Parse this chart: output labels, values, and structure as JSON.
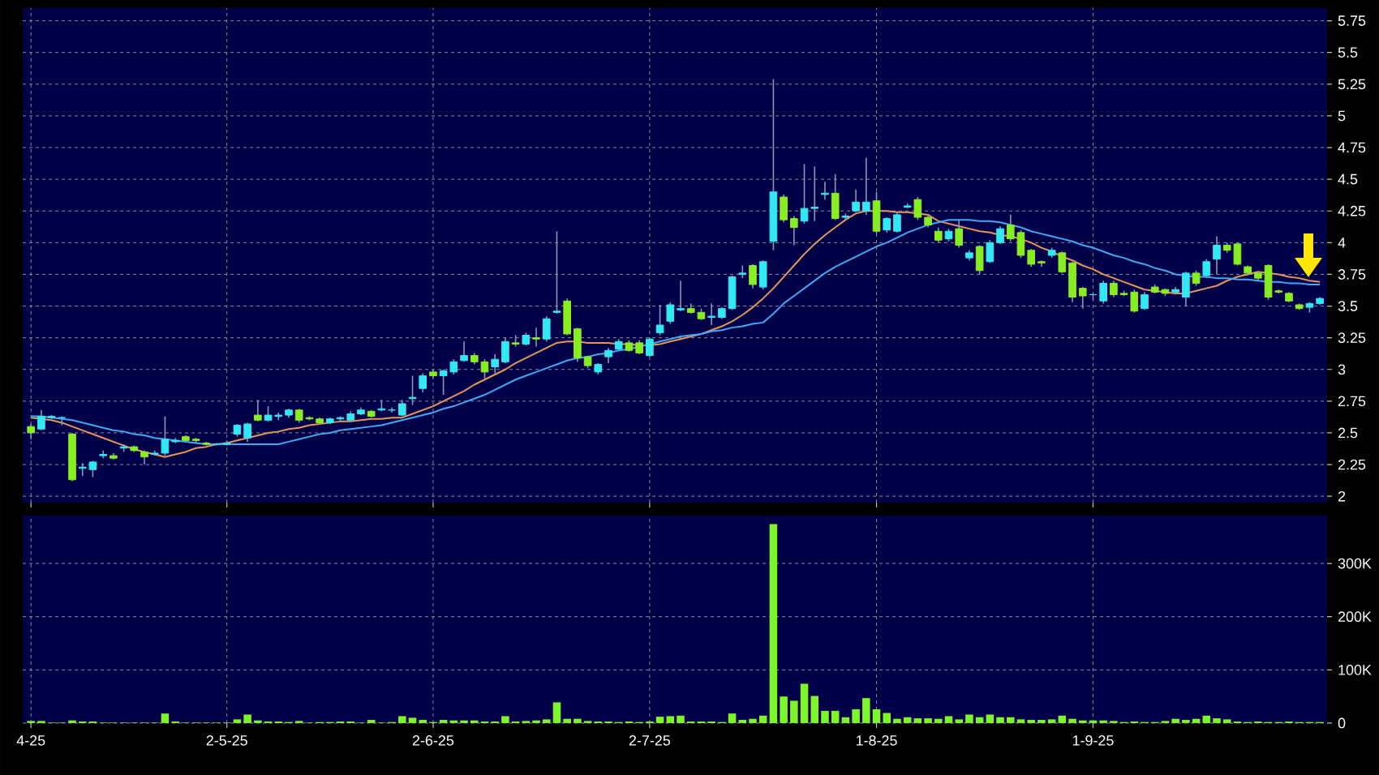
{
  "chart_data": [
    {
      "type": "candlestick",
      "grid": true,
      "tick_labels": "y",
      "colors": [
        "#88ee22",
        "#33e8f2",
        "#33e8f2",
        "#33e8f2",
        "#88ee22",
        "#33e8f2",
        "#33e8f2",
        "#33e8f2",
        "#88ee22",
        "#33e8f2",
        "#88ee22",
        "#88ee22",
        "#33e8f2",
        "#33e8f2",
        "#33e8f2",
        "#88ee22",
        "#88ee22",
        "#88ee22",
        "#33e8f2",
        "#33e8f2",
        "#33e8f2",
        "#33e8f2",
        "#88ee22",
        "#33e8f2",
        "#33e8f2",
        "#33e8f2",
        "#88ee22",
        "#88ee22",
        "#88ee22",
        "#33e8f2",
        "#33e8f2",
        "#33e8f2",
        "#33e8f2",
        "#88ee22",
        "#33e8f2",
        "#33e8f2",
        "#33e8f2",
        "#33e8f2",
        "#33e8f2",
        "#88ee22",
        "#33e8f2",
        "#33e8f2",
        "#33e8f2",
        "#88ee22",
        "#88ee22",
        "#33e8f2",
        "#33e8f2",
        "#88ee22",
        "#33e8f2",
        "#88ee22",
        "#33e8f2",
        "#33e8f2",
        "#88ee22",
        "#88ee22",
        "#88ee22",
        "#33e8f2",
        "#33e8f2",
        "#33e8f2",
        "#88ee22",
        "#88ee22",
        "#33e8f2",
        "#33e8f2",
        "#33e8f2",
        "#33e8f2",
        "#88ee22",
        "#88ee22",
        "#33e8f2",
        "#33e8f2",
        "#33e8f2",
        "#33e8f2",
        "#88ee22",
        "#33e8f2",
        "#33e8f2",
        "#88ee22",
        "#88ee22",
        "#33e8f2",
        "#33e8f2",
        "#33e8f2",
        "#88ee22",
        "#33e8f2",
        "#33e8f2",
        "#33e8f2",
        "#88ee22",
        "#33e8f2",
        "#33e8f2",
        "#33e8f2",
        "#88ee22",
        "#88ee22",
        "#88ee22",
        "#33e8f2",
        "#88ee22",
        "#33e8f2",
        "#88ee22",
        "#33e8f2",
        "#33e8f2",
        "#88ee22",
        "#88ee22",
        "#88ee22",
        "#88ee22",
        "#33e8f2",
        "#88ee22",
        "#88ee22",
        "#88ee22",
        "#33e8f2",
        "#33e8f2",
        "#88ee22",
        "#88ee22",
        "#88ee22",
        "#33e8f2",
        "#88ee22",
        "#88ee22",
        "#33e8f2",
        "#33e8f2",
        "#88ee22",
        "#33e8f2",
        "#33e8f2",
        "#88ee22",
        "#88ee22",
        "#88ee22",
        "#88ee22",
        "#88ee22",
        "#88ee22",
        "#88ee22",
        "#88ee22",
        "#33e8f2",
        "#33e8f2"
      ],
      "categories": [
        null,
        null,
        null,
        null,
        null,
        null,
        null,
        null,
        null,
        null,
        null,
        null,
        null,
        null,
        null,
        null,
        null,
        null,
        null,
        null,
        null,
        null,
        null,
        null,
        null,
        null,
        null,
        null,
        null,
        null,
        null,
        null,
        null,
        null,
        null,
        null,
        null,
        null,
        null,
        null,
        null,
        null,
        null,
        null,
        null,
        null,
        null,
        null,
        null,
        null,
        null,
        null,
        null,
        null,
        null,
        null,
        null,
        null,
        null,
        null,
        null,
        null,
        null,
        null,
        null,
        null,
        null,
        null,
        null,
        null,
        null,
        null,
        null,
        null,
        null,
        null,
        null,
        null,
        null,
        null,
        null,
        null,
        null,
        null,
        null,
        null,
        null,
        null,
        null,
        null,
        null,
        null,
        null,
        null,
        null,
        null,
        null,
        null,
        null,
        null,
        null,
        null,
        null,
        null,
        null,
        null,
        null,
        null,
        null,
        null,
        null,
        null,
        null,
        null,
        null,
        null,
        null,
        null,
        null,
        null,
        null,
        null,
        null,
        null,
        null,
        null
      ],
      "ylim": [
        1.95,
        5.85
      ],
      "yticks": [
        2,
        2.25,
        2.5,
        2.75,
        3,
        3.25,
        3.5,
        3.75,
        4,
        4.25,
        4.5,
        4.75,
        5,
        5.25,
        5.5,
        5.75
      ],
      "ohlc": [
        [
          2.55,
          2.57,
          2.45,
          2.5
        ],
        [
          2.53,
          2.68,
          2.52,
          2.63
        ],
        [
          2.62,
          2.64,
          2.61,
          2.63
        ],
        [
          2.62,
          2.63,
          2.56,
          2.62
        ],
        [
          2.49,
          2.5,
          2.12,
          2.13
        ],
        [
          2.22,
          2.26,
          2.16,
          2.23
        ],
        [
          2.21,
          2.28,
          2.15,
          2.27
        ],
        [
          2.32,
          2.36,
          2.3,
          2.33
        ],
        [
          2.32,
          2.34,
          2.29,
          2.3
        ],
        [
          2.38,
          2.41,
          2.35,
          2.39
        ],
        [
          2.39,
          2.4,
          2.35,
          2.36
        ],
        [
          2.35,
          2.36,
          2.25,
          2.31
        ],
        [
          2.33,
          2.36,
          2.32,
          2.34
        ],
        [
          2.34,
          2.63,
          2.32,
          2.45
        ],
        [
          2.43,
          2.46,
          2.42,
          2.44
        ],
        [
          2.47,
          2.48,
          2.43,
          2.44
        ],
        [
          2.45,
          2.46,
          2.42,
          2.44
        ],
        [
          2.42,
          2.43,
          2.4,
          2.41
        ],
        [
          2.41,
          2.42,
          2.4,
          2.41
        ],
        [
          2.41,
          2.44,
          2.4,
          2.42
        ],
        [
          2.49,
          2.57,
          2.47,
          2.56
        ],
        [
          2.46,
          2.58,
          2.43,
          2.57
        ],
        [
          2.64,
          2.76,
          2.59,
          2.6
        ],
        [
          2.6,
          2.71,
          2.59,
          2.64
        ],
        [
          2.63,
          2.66,
          2.6,
          2.64
        ],
        [
          2.64,
          2.69,
          2.62,
          2.68
        ],
        [
          2.68,
          2.69,
          2.58,
          2.6
        ],
        [
          2.62,
          2.63,
          2.6,
          2.61
        ],
        [
          2.61,
          2.62,
          2.57,
          2.58
        ],
        [
          2.58,
          2.62,
          2.57,
          2.61
        ],
        [
          2.61,
          2.63,
          2.59,
          2.62
        ],
        [
          2.6,
          2.67,
          2.59,
          2.65
        ],
        [
          2.65,
          2.7,
          2.64,
          2.68
        ],
        [
          2.67,
          2.68,
          2.62,
          2.63
        ],
        [
          2.68,
          2.76,
          2.67,
          2.69
        ],
        [
          2.68,
          2.7,
          2.66,
          2.68
        ],
        [
          2.64,
          2.76,
          2.63,
          2.73
        ],
        [
          2.77,
          2.95,
          2.72,
          2.78
        ],
        [
          2.85,
          2.97,
          2.82,
          2.95
        ],
        [
          2.98,
          3.0,
          2.93,
          2.95
        ],
        [
          2.95,
          3.0,
          2.8,
          2.99
        ],
        [
          2.98,
          3.08,
          2.96,
          3.06
        ],
        [
          3.07,
          3.22,
          3.06,
          3.11
        ],
        [
          3.11,
          3.13,
          3.04,
          3.06
        ],
        [
          3.06,
          3.08,
          2.93,
          2.98
        ],
        [
          3.02,
          3.12,
          2.97,
          3.08
        ],
        [
          3.06,
          3.25,
          3.05,
          3.22
        ],
        [
          3.21,
          3.27,
          3.18,
          3.2
        ],
        [
          3.2,
          3.29,
          3.19,
          3.27
        ],
        [
          3.25,
          3.33,
          3.18,
          3.24
        ],
        [
          3.24,
          3.42,
          3.22,
          3.4
        ],
        [
          3.45,
          4.09,
          3.44,
          3.46
        ],
        [
          3.54,
          3.56,
          3.27,
          3.28
        ],
        [
          3.32,
          3.33,
          3.06,
          3.09
        ],
        [
          3.1,
          3.11,
          3.01,
          3.03
        ],
        [
          2.98,
          3.05,
          2.96,
          3.04
        ],
        [
          3.1,
          3.17,
          3.05,
          3.15
        ],
        [
          3.16,
          3.24,
          3.15,
          3.22
        ],
        [
          3.21,
          3.23,
          3.14,
          3.15
        ],
        [
          3.21,
          3.23,
          3.12,
          3.13
        ],
        [
          3.11,
          3.25,
          3.1,
          3.24
        ],
        [
          3.29,
          3.51,
          3.27,
          3.35
        ],
        [
          3.38,
          3.53,
          3.36,
          3.51
        ],
        [
          3.47,
          3.7,
          3.46,
          3.48
        ],
        [
          3.48,
          3.52,
          3.44,
          3.45
        ],
        [
          3.45,
          3.48,
          3.39,
          3.4
        ],
        [
          3.41,
          3.52,
          3.35,
          3.42
        ],
        [
          3.41,
          3.49,
          3.4,
          3.48
        ],
        [
          3.48,
          3.74,
          3.47,
          3.73
        ],
        [
          3.75,
          3.82,
          3.72,
          3.76
        ],
        [
          3.82,
          3.83,
          3.64,
          3.67
        ],
        [
          3.65,
          3.86,
          3.63,
          3.85
        ],
        [
          4.01,
          5.29,
          3.94,
          4.4
        ],
        [
          4.36,
          4.38,
          4.16,
          4.18
        ],
        [
          4.19,
          4.21,
          3.98,
          4.12
        ],
        [
          4.17,
          4.62,
          4.15,
          4.27
        ],
        [
          4.27,
          4.6,
          4.17,
          4.28
        ],
        [
          4.38,
          4.48,
          4.34,
          4.39
        ],
        [
          4.39,
          4.54,
          4.18,
          4.19
        ],
        [
          4.2,
          4.23,
          4.18,
          4.21
        ],
        [
          4.25,
          4.42,
          4.24,
          4.32
        ],
        [
          4.25,
          4.67,
          4.22,
          4.32
        ],
        [
          4.33,
          4.4,
          4.07,
          4.09
        ],
        [
          4.1,
          4.2,
          4.08,
          4.19
        ],
        [
          4.09,
          4.24,
          4.08,
          4.22
        ],
        [
          4.28,
          4.31,
          4.27,
          4.29
        ],
        [
          4.34,
          4.36,
          4.18,
          4.2
        ],
        [
          4.2,
          4.22,
          4.12,
          4.14
        ],
        [
          4.09,
          4.12,
          4.0,
          4.02
        ],
        [
          4.03,
          4.11,
          4.01,
          4.09
        ],
        [
          4.11,
          4.18,
          3.96,
          3.98
        ],
        [
          3.88,
          3.94,
          3.86,
          3.92
        ],
        [
          3.97,
          3.98,
          3.75,
          3.78
        ],
        [
          3.85,
          4.02,
          3.84,
          4.0
        ],
        [
          4.0,
          4.13,
          3.99,
          4.11
        ],
        [
          4.14,
          4.22,
          4.01,
          4.03
        ],
        [
          4.08,
          4.1,
          3.88,
          3.9
        ],
        [
          3.94,
          3.95,
          3.81,
          3.83
        ],
        [
          3.85,
          3.86,
          3.81,
          3.84
        ],
        [
          3.9,
          3.96,
          3.88,
          3.94
        ],
        [
          3.92,
          3.93,
          3.76,
          3.77
        ],
        [
          3.84,
          3.85,
          3.53,
          3.57
        ],
        [
          3.64,
          3.65,
          3.48,
          3.58
        ],
        [
          3.59,
          3.6,
          3.55,
          3.59
        ],
        [
          3.54,
          3.7,
          3.52,
          3.68
        ],
        [
          3.68,
          3.7,
          3.57,
          3.59
        ],
        [
          3.6,
          3.62,
          3.58,
          3.59
        ],
        [
          3.61,
          3.63,
          3.45,
          3.46
        ],
        [
          3.48,
          3.61,
          3.47,
          3.59
        ],
        [
          3.65,
          3.67,
          3.6,
          3.61
        ],
        [
          3.63,
          3.64,
          3.58,
          3.6
        ],
        [
          3.61,
          3.65,
          3.59,
          3.63
        ],
        [
          3.57,
          3.77,
          3.5,
          3.76
        ],
        [
          3.76,
          3.78,
          3.66,
          3.68
        ],
        [
          3.74,
          3.87,
          3.72,
          3.85
        ],
        [
          3.87,
          4.05,
          3.75,
          3.98
        ],
        [
          3.98,
          4.0,
          3.92,
          3.94
        ],
        [
          3.99,
          4.0,
          3.82,
          3.83
        ],
        [
          3.81,
          3.82,
          3.74,
          3.76
        ],
        [
          3.76,
          3.77,
          3.7,
          3.72
        ],
        [
          3.82,
          3.83,
          3.55,
          3.57
        ],
        [
          3.62,
          3.63,
          3.6,
          3.61
        ],
        [
          3.6,
          3.61,
          3.53,
          3.54
        ],
        [
          3.51,
          3.52,
          3.47,
          3.48
        ],
        [
          3.49,
          3.53,
          3.45,
          3.52
        ],
        [
          3.52,
          3.57,
          3.51,
          3.56
        ]
      ],
      "series": [
        {
          "type": "line",
          "color": "#e8955a",
          "values": [
            2.62,
            2.61,
            2.6,
            2.58,
            2.55,
            2.52,
            2.49,
            2.46,
            2.43,
            2.4,
            2.37,
            2.35,
            2.33,
            2.31,
            2.33,
            2.35,
            2.38,
            2.39,
            2.41,
            2.42,
            2.44,
            2.46,
            2.48,
            2.5,
            2.51,
            2.53,
            2.54,
            2.56,
            2.57,
            2.58,
            2.59,
            2.59,
            2.6,
            2.61,
            2.61,
            2.62,
            2.62,
            2.65,
            2.68,
            2.71,
            2.75,
            2.79,
            2.83,
            2.88,
            2.92,
            2.96,
            3.0,
            3.05,
            3.09,
            3.13,
            3.17,
            3.21,
            3.22,
            3.22,
            3.21,
            3.21,
            3.21,
            3.2,
            3.2,
            3.19,
            3.19,
            3.2,
            3.22,
            3.24,
            3.26,
            3.28,
            3.31,
            3.34,
            3.38,
            3.43,
            3.49,
            3.56,
            3.64,
            3.73,
            3.82,
            3.91,
            3.99,
            4.06,
            4.12,
            4.18,
            4.23,
            4.25,
            4.25,
            4.25,
            4.24,
            4.24,
            4.23,
            4.22,
            4.17,
            4.15,
            4.13,
            4.11,
            4.09,
            4.08,
            4.06,
            4.05,
            4.03,
            4.0,
            3.96,
            3.93,
            3.89,
            3.86,
            3.82,
            3.79,
            3.75,
            3.72,
            3.69,
            3.66,
            3.63,
            3.62,
            3.61,
            3.6,
            3.6,
            3.62,
            3.64,
            3.66,
            3.7,
            3.73,
            3.75,
            3.77,
            3.76,
            3.75,
            3.73,
            3.72,
            3.7,
            3.69
          ]
        },
        {
          "type": "line",
          "color": "#3fa9f5",
          "values": [
            2.63,
            2.63,
            2.62,
            2.61,
            2.6,
            2.58,
            2.56,
            2.54,
            2.52,
            2.51,
            2.49,
            2.48,
            2.46,
            2.45,
            2.44,
            2.43,
            2.42,
            2.41,
            2.41,
            2.41,
            2.41,
            2.41,
            2.41,
            2.41,
            2.41,
            2.43,
            2.45,
            2.47,
            2.49,
            2.5,
            2.52,
            2.53,
            2.54,
            2.55,
            2.56,
            2.58,
            2.6,
            2.62,
            2.64,
            2.66,
            2.69,
            2.71,
            2.74,
            2.77,
            2.8,
            2.84,
            2.88,
            2.92,
            2.95,
            2.98,
            3.01,
            3.04,
            3.07,
            3.09,
            3.1,
            3.12,
            3.13,
            3.15,
            3.16,
            3.18,
            3.2,
            3.22,
            3.24,
            3.26,
            3.27,
            3.28,
            3.3,
            3.31,
            3.33,
            3.34,
            3.36,
            3.37,
            3.44,
            3.52,
            3.58,
            3.64,
            3.7,
            3.76,
            3.81,
            3.85,
            3.89,
            3.93,
            3.97,
            4.0,
            4.04,
            4.08,
            4.11,
            4.14,
            4.16,
            4.18,
            4.18,
            4.18,
            4.17,
            4.17,
            4.16,
            4.14,
            4.12,
            4.09,
            4.07,
            4.05,
            4.03,
            4.01,
            3.98,
            3.96,
            3.93,
            3.9,
            3.88,
            3.85,
            3.83,
            3.8,
            3.78,
            3.75,
            3.74,
            3.73,
            3.73,
            3.72,
            3.72,
            3.71,
            3.71,
            3.7,
            3.69,
            3.69,
            3.68,
            3.68,
            3.67,
            3.67
          ]
        }
      ]
    },
    {
      "type": "bar",
      "grid": true,
      "color": "#7cf52a",
      "categories": [
        "4-25",
        null,
        null,
        null,
        null,
        null,
        null,
        null,
        null,
        null,
        null,
        null,
        null,
        null,
        null,
        null,
        null,
        null,
        null,
        "2-5-25",
        null,
        null,
        null,
        null,
        null,
        null,
        null,
        null,
        null,
        null,
        null,
        null,
        null,
        null,
        null,
        null,
        null,
        null,
        null,
        "2-6-25",
        null,
        null,
        null,
        null,
        null,
        null,
        null,
        null,
        null,
        null,
        null,
        null,
        null,
        null,
        null,
        null,
        null,
        null,
        null,
        null,
        "2-7-25",
        null,
        null,
        null,
        null,
        null,
        null,
        null,
        null,
        null,
        null,
        null,
        null,
        null,
        null,
        null,
        null,
        null,
        null,
        null,
        null,
        null,
        "1-8-25",
        null,
        null,
        null,
        null,
        null,
        null,
        null,
        null,
        null,
        null,
        null,
        null,
        null,
        null,
        null,
        null,
        null,
        null,
        null,
        null,
        "1-9-25",
        null,
        null,
        null,
        null,
        null,
        null,
        null,
        null,
        null,
        null,
        null,
        null,
        null,
        null,
        null,
        null,
        null,
        null,
        null,
        null,
        null,
        null
      ],
      "ylim": [
        0,
        390000
      ],
      "yticks": [
        0,
        {
          "value": 100000,
          "label": "100K"
        },
        {
          "value": 200000,
          "label": "200K"
        },
        {
          "value": 300000,
          "label": "300K"
        }
      ],
      "values": [
        4000,
        4000,
        1000,
        1000,
        5000,
        3000,
        3000,
        1000,
        1000,
        1000,
        1000,
        1000,
        1000,
        18000,
        3000,
        1000,
        1000,
        1000,
        1000,
        1000,
        7000,
        16000,
        5000,
        3000,
        3000,
        2000,
        4000,
        1000,
        2000,
        2000,
        3000,
        3000,
        1000,
        6000,
        1000,
        2000,
        13000,
        10000,
        6000,
        2000,
        6000,
        5000,
        5000,
        5000,
        3000,
        3000,
        13000,
        3000,
        4000,
        5000,
        7000,
        39000,
        8000,
        8000,
        4000,
        3000,
        3000,
        2000,
        3000,
        2000,
        3000,
        12000,
        13000,
        14000,
        3000,
        3000,
        3000,
        2000,
        18000,
        6000,
        8000,
        14000,
        374000,
        50000,
        42000,
        74000,
        51000,
        23000,
        23000,
        11000,
        26000,
        47000,
        26000,
        19000,
        8000,
        11000,
        9000,
        9000,
        8000,
        13000,
        7000,
        16000,
        11000,
        16000,
        11000,
        11000,
        7000,
        6000,
        6000,
        7000,
        14000,
        8000,
        5000,
        5000,
        5000,
        4000,
        2000,
        3000,
        2000,
        2000,
        4000,
        8000,
        6000,
        8000,
        14000,
        9000,
        7000,
        3000,
        2000,
        3000,
        2000,
        2000,
        3000,
        2000,
        2000,
        2000
      ]
    }
  ]
}
